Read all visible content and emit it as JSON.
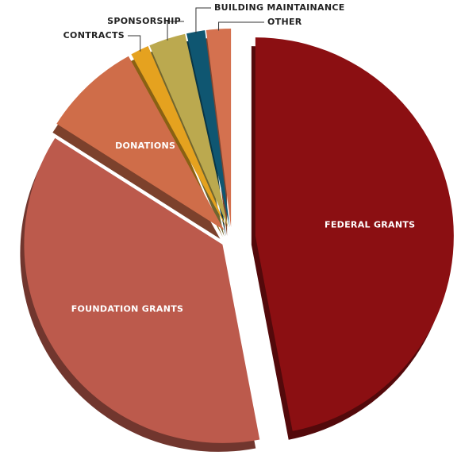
{
  "chart_data": {
    "type": "pie",
    "categories": [
      "FEDERAL GRANTS",
      "FOUNDATION GRANTS",
      "DONATIONS",
      "CONTRACTS",
      "SPONSORSHIP",
      "BUILDING MAINTAINANCE",
      "OTHER"
    ],
    "values": [
      47,
      37,
      8,
      1.5,
      3,
      1.5,
      2
    ],
    "colors": [
      "#8b0f12",
      "#bc5a4c",
      "#cf6d49",
      "#e5a21f",
      "#bba94f",
      "#0f5671",
      "#d4714f"
    ]
  }
}
